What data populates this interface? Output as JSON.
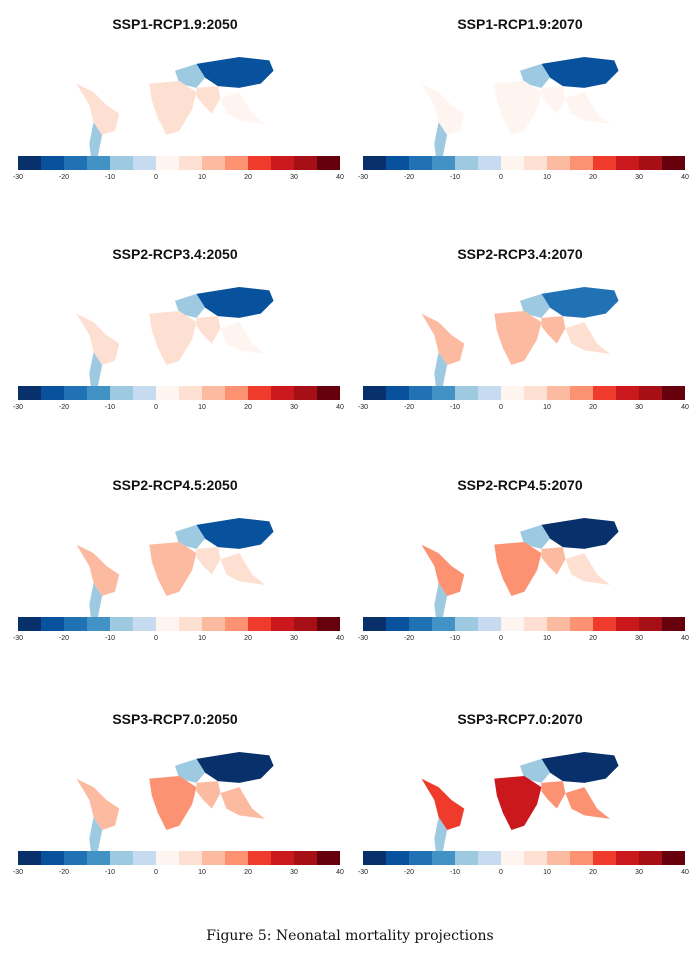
{
  "caption": "Figure 5: Neonatal mortality projections",
  "chart_data": {
    "type": "heatmap",
    "subtype": "choropleth-map-grid",
    "panels": [
      {
        "title": "SSP1-RCP1.9:2050",
        "north_asia": -25,
        "south_asia": 5,
        "africa": 8,
        "latin_america": 8,
        "southern_s_america": -8,
        "se_asia": 3
      },
      {
        "title": "SSP1-RCP1.9:2070",
        "north_asia": -25,
        "south_asia": 3,
        "africa": 3,
        "latin_america": 2,
        "southern_s_america": -8,
        "se_asia": 2
      },
      {
        "title": "SSP2-RCP3.4:2050",
        "north_asia": -25,
        "south_asia": 5,
        "africa": 8,
        "latin_america": 8,
        "southern_s_america": -8,
        "se_asia": 3
      },
      {
        "title": "SSP2-RCP3.4:2070",
        "north_asia": -20,
        "south_asia": 10,
        "africa": 12,
        "latin_america": 12,
        "southern_s_america": -8,
        "se_asia": 8
      },
      {
        "title": "SSP2-RCP4.5:2050",
        "north_asia": -25,
        "south_asia": 5,
        "africa": 10,
        "latin_america": 10,
        "southern_s_america": -8,
        "se_asia": 5
      },
      {
        "title": "SSP2-RCP4.5:2070",
        "north_asia": -28,
        "south_asia": 10,
        "africa": 15,
        "latin_america": 15,
        "southern_s_america": -10,
        "se_asia": 8
      },
      {
        "title": "SSP3-RCP7.0:2050",
        "north_asia": -28,
        "south_asia": 10,
        "africa": 15,
        "latin_america": 12,
        "southern_s_america": -10,
        "se_asia": 10
      },
      {
        "title": "SSP3-RCP7.0:2070",
        "north_asia": -28,
        "south_asia": 18,
        "africa": 28,
        "latin_america": 22,
        "southern_s_america": -10,
        "se_asia": 16
      }
    ],
    "legend": {
      "min": -30,
      "max": 40,
      "step": 5,
      "ticks": [
        "-30",
        "-20",
        "-10",
        "0",
        "10",
        "20",
        "30",
        "40"
      ],
      "colors": [
        "#08306b",
        "#08519c",
        "#2171b5",
        "#4292c6",
        "#9ecae1",
        "#c6dbef",
        "#fff5f0",
        "#fee0d2",
        "#fcbba1",
        "#fc9272",
        "#ef3b2c",
        "#cb181d",
        "#a50f15",
        "#67000d"
      ]
    }
  }
}
